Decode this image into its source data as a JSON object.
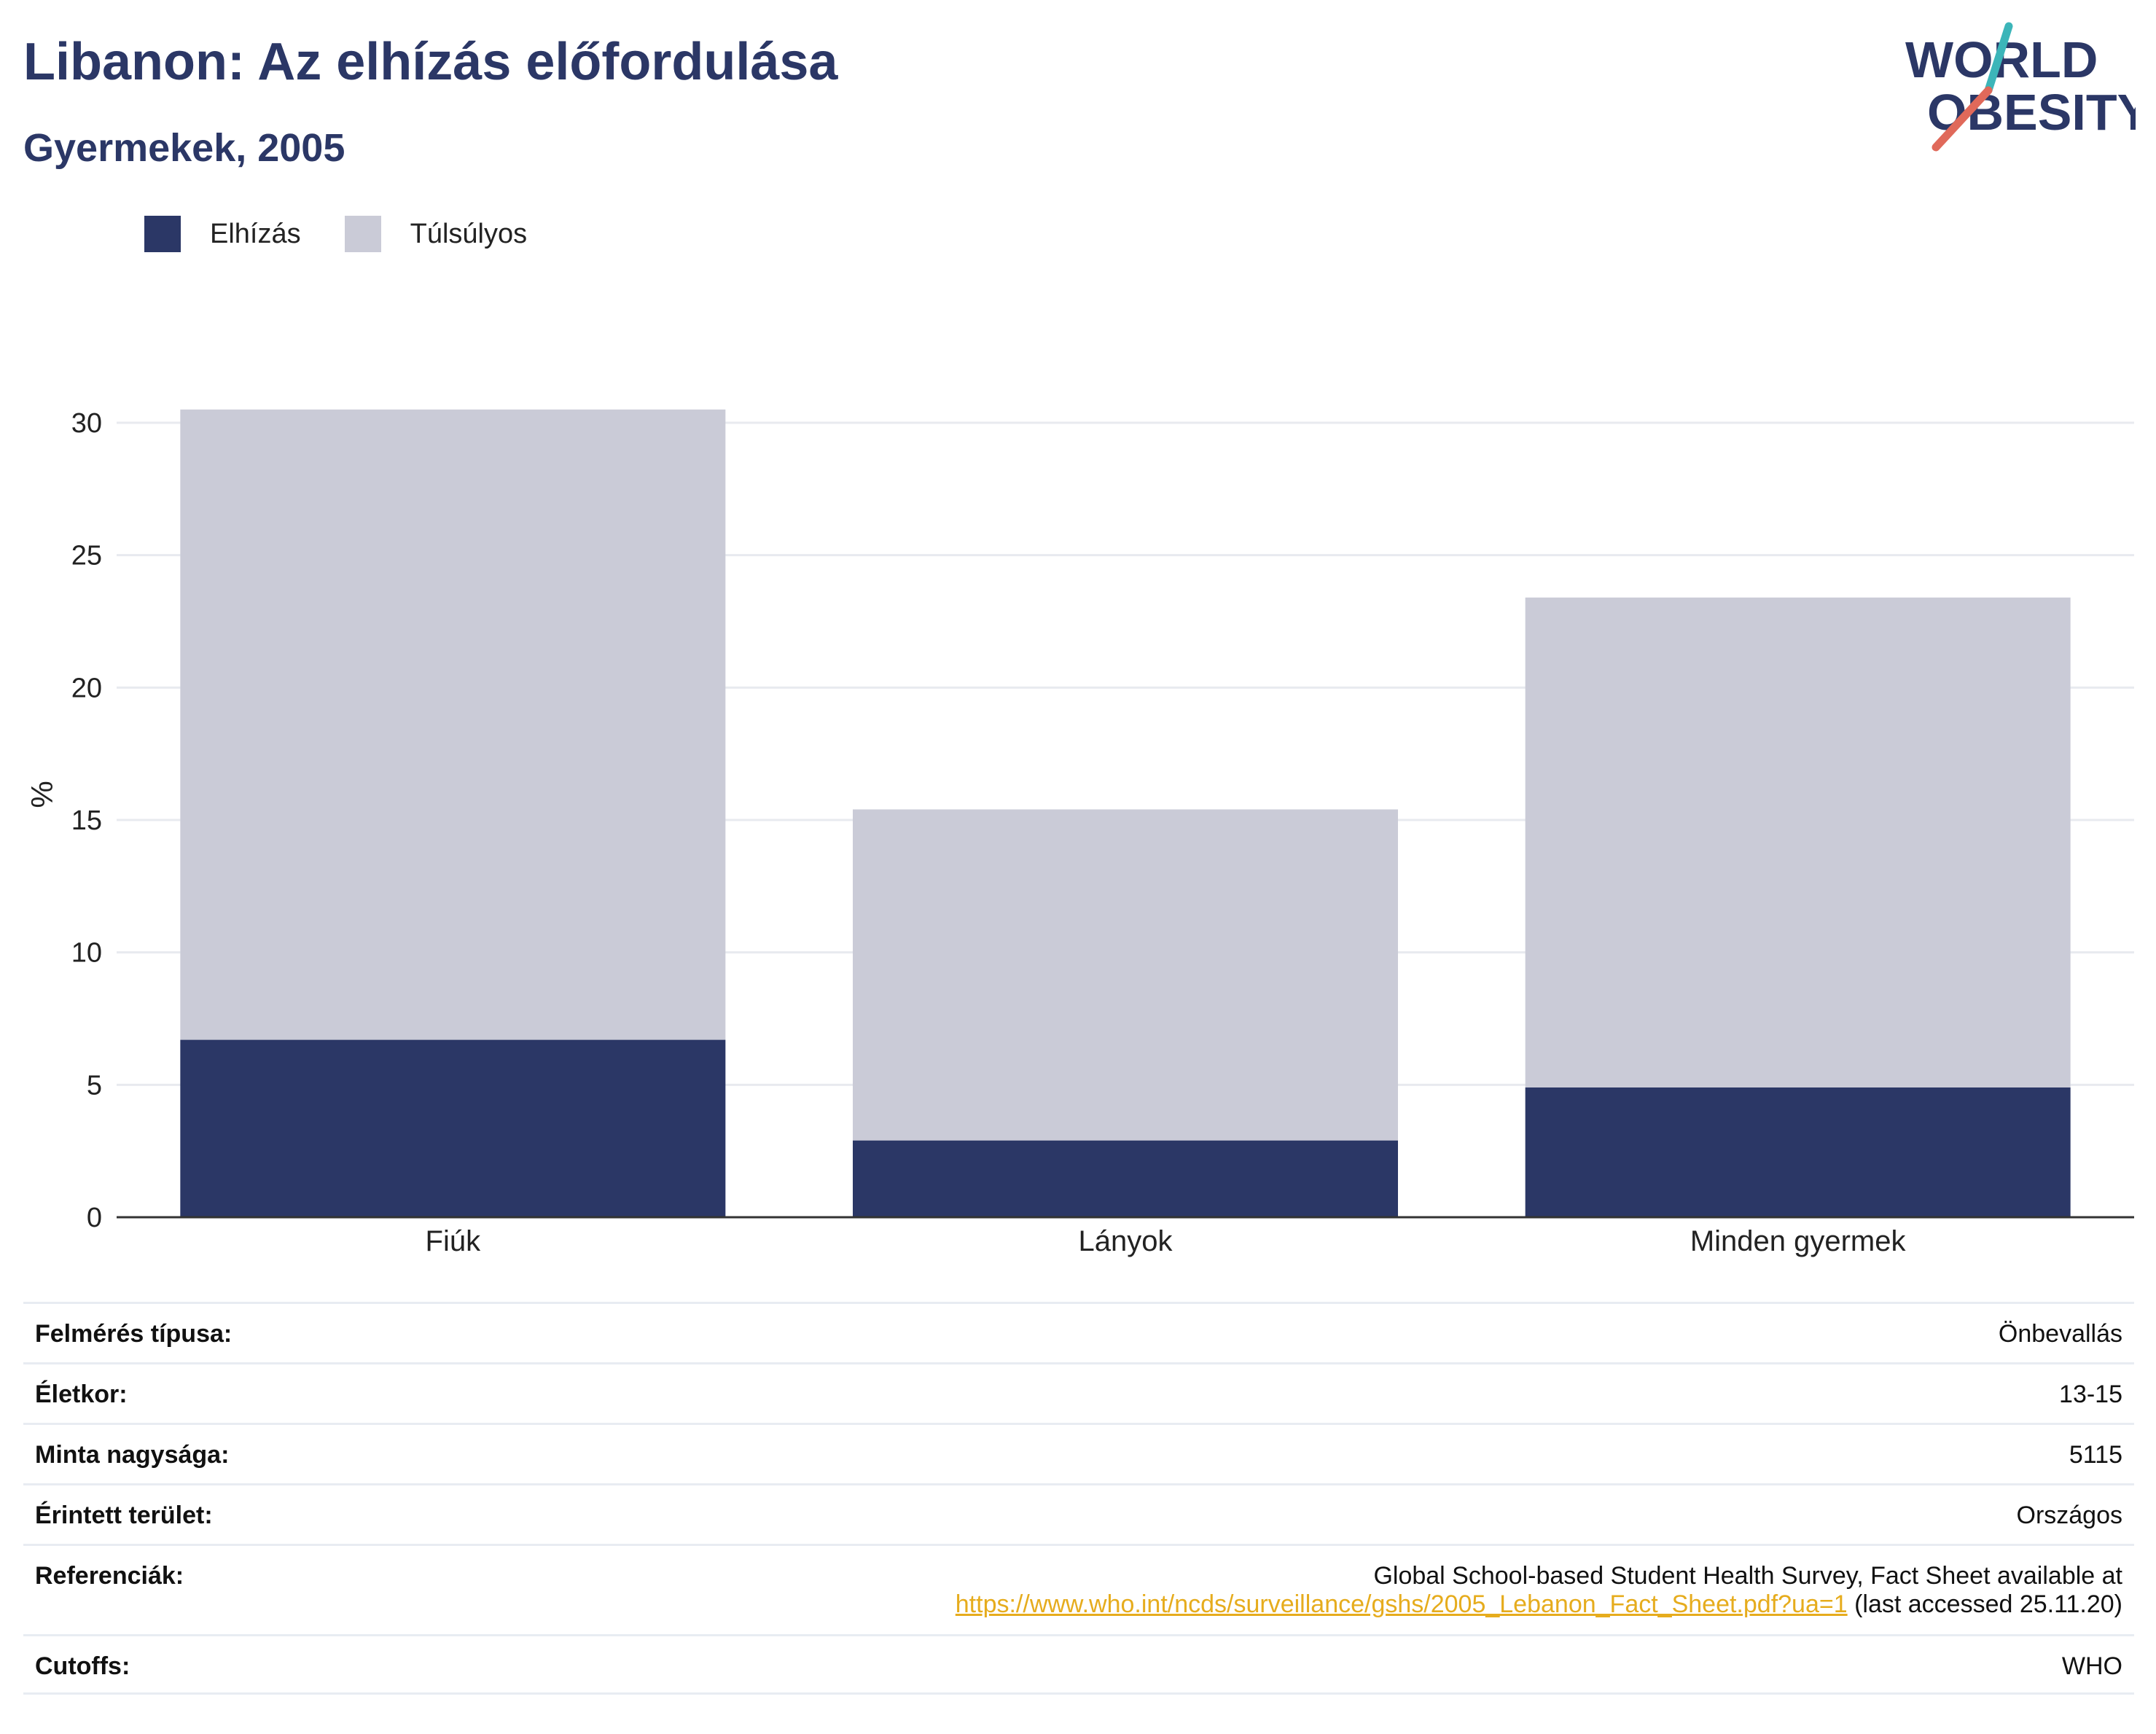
{
  "header": {
    "title": "Libanon: Az elhízás előfordulása",
    "subtitle": "Gyermekek, 2005",
    "logo_line1": "WORLD",
    "logo_line2": "OBESITY"
  },
  "colors": {
    "obesity": "#2b3766",
    "overweight": "#cacbd7",
    "title": "#2b3766",
    "link": "#e6ac1d",
    "logo_teal": "#3cb5b9",
    "logo_coral": "#e0695a"
  },
  "chart_data": {
    "type": "bar",
    "stacked": true,
    "categories": [
      "Fiúk",
      "Lányok",
      "Minden gyermek"
    ],
    "series": [
      {
        "name": "Elhízás",
        "values": [
          6.7,
          2.9,
          4.9
        ]
      },
      {
        "name": "Túlsúlyos",
        "values": [
          23.8,
          12.5,
          18.5
        ]
      }
    ],
    "ylabel": "%",
    "xlabel": "",
    "ylim": [
      0,
      30.5
    ],
    "yticks": [
      0,
      5,
      10,
      15,
      20,
      25,
      30
    ],
    "grid": true,
    "legend_position": "top-left"
  },
  "info": {
    "survey_type": {
      "label": "Felmérés típusa:",
      "value": "Önbevallás"
    },
    "age": {
      "label": "Életkor:",
      "value": "13-15"
    },
    "sample_size": {
      "label": "Minta nagysága:",
      "value": "5115"
    },
    "area": {
      "label": "Érintett terület:",
      "value": "Országos"
    },
    "references": {
      "label": "Referenciák:",
      "line1": "Global School-based Student Health Survey, Fact Sheet available at",
      "link": "https://www.who.int/ncds/surveillance/gshs/2005_Lebanon_Fact_Sheet.pdf?ua=1",
      "suffix": " (last accessed 25.11.20)"
    },
    "cutoffs": {
      "label": "Cutoffs:",
      "value": "WHO"
    }
  }
}
